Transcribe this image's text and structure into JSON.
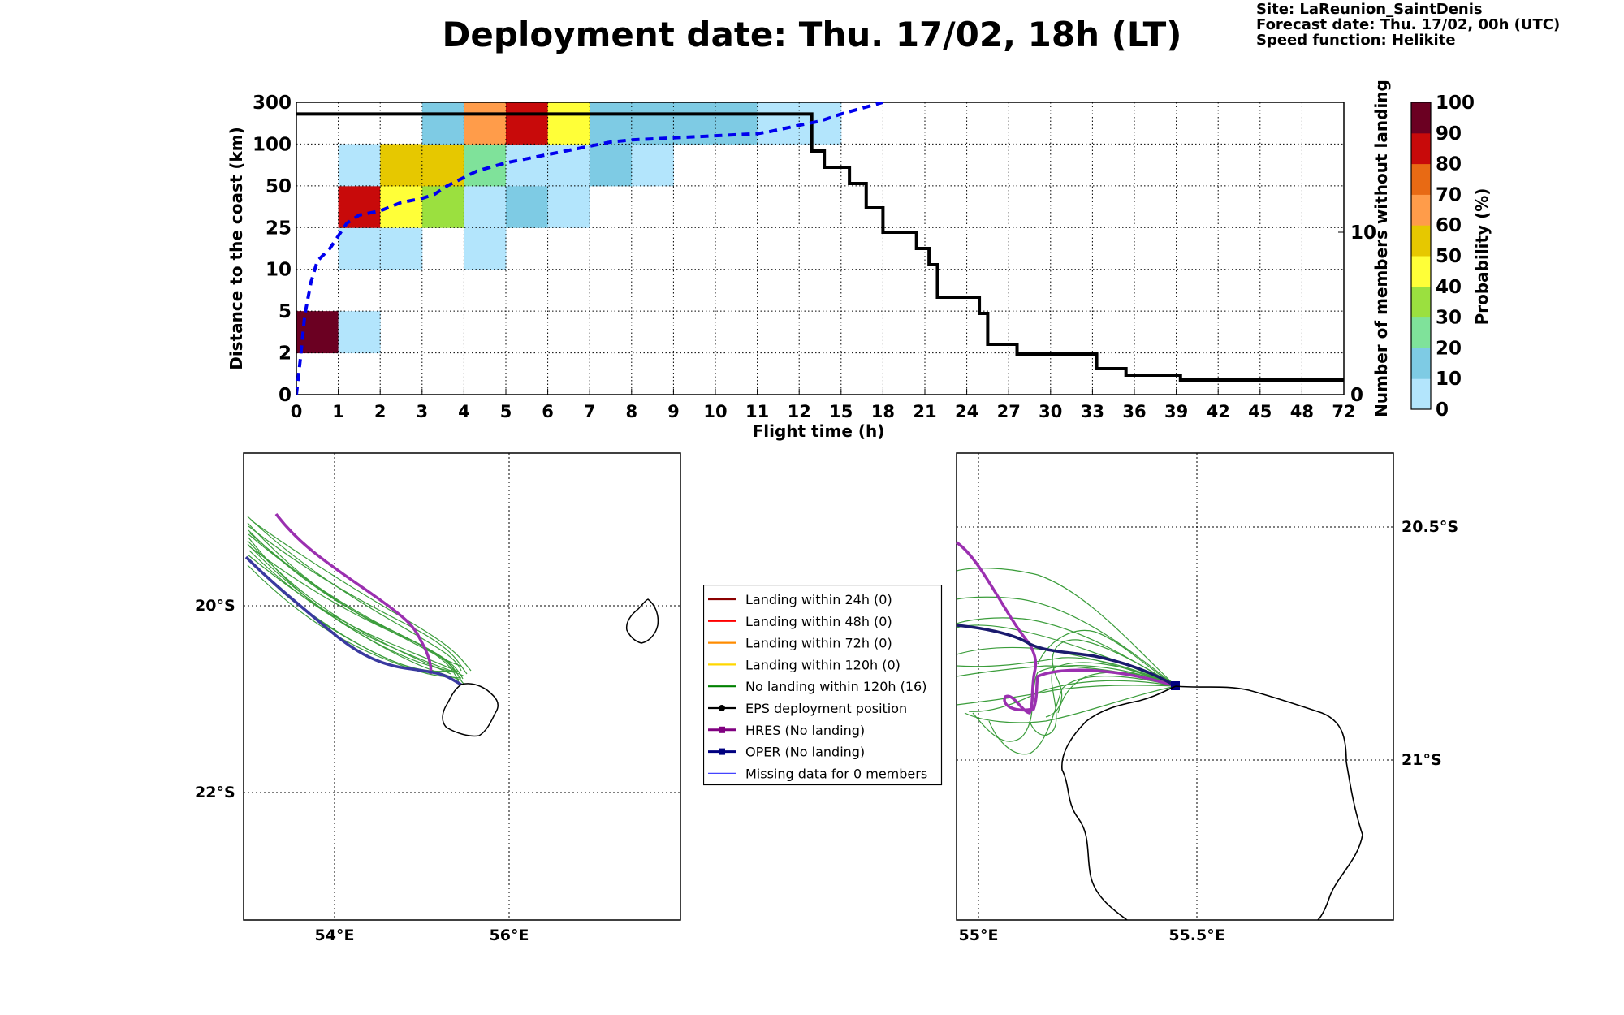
{
  "title": "Deployment date: Thu. 17/02, 18h (LT)",
  "meta": {
    "site": "Site: LaReunion_SaintDenis",
    "forecast": "Forecast date: Thu. 17/02, 00h (UTC)",
    "speed": "Speed function: Helikite"
  },
  "chart_data": [
    {
      "type": "heatmap",
      "xlabel": "Flight time (h)",
      "ylabel": "Distance to the coast (km)",
      "y2label": "Number of members without landing",
      "x_ticks": [
        "0",
        "1",
        "2",
        "3",
        "4",
        "5",
        "6",
        "7",
        "8",
        "9",
        "10",
        "11",
        "12",
        "15",
        "18",
        "21",
        "24",
        "27",
        "30",
        "33",
        "36",
        "39",
        "42",
        "45",
        "48",
        "72"
      ],
      "y_ticks": [
        "0",
        "2",
        "5",
        "10",
        "25",
        "50",
        "100",
        "300"
      ],
      "y2_ticks": [
        "0",
        "10"
      ],
      "y2lim": [
        0,
        18
      ],
      "grid": true,
      "colorbar": {
        "label": "Probability (%)",
        "ticks": [
          "0",
          "10",
          "20",
          "30",
          "40",
          "50",
          "60",
          "70",
          "80",
          "90",
          "100"
        ],
        "colors": [
          "#b3e5fc",
          "#7ecbe4",
          "#7fe29a",
          "#9be03f",
          "#ffff38",
          "#e6c800",
          "#ff9c4a",
          "#e86a14",
          "#c80a0a",
          "#6b0022"
        ]
      },
      "cells": [
        {
          "x": 0,
          "y": 1,
          "p": 95
        },
        {
          "x": 1,
          "y": 1,
          "p": 5
        },
        {
          "x": 1,
          "y": 3,
          "p": 5
        },
        {
          "x": 1,
          "y": 4,
          "p": 85
        },
        {
          "x": 1,
          "y": 5,
          "p": 5
        },
        {
          "x": 2,
          "y": 3,
          "p": 5
        },
        {
          "x": 2,
          "y": 4,
          "p": 45
        },
        {
          "x": 2,
          "y": 5,
          "p": 55
        },
        {
          "x": 3,
          "y": 4,
          "p": 35
        },
        {
          "x": 3,
          "y": 5,
          "p": 55
        },
        {
          "x": 3,
          "y": 6,
          "p": 15
        },
        {
          "x": 4,
          "y": 3,
          "p": 5
        },
        {
          "x": 4,
          "y": 4,
          "p": 5
        },
        {
          "x": 4,
          "y": 5,
          "p": 25
        },
        {
          "x": 4,
          "y": 6,
          "p": 65
        },
        {
          "x": 5,
          "y": 4,
          "p": 15
        },
        {
          "x": 5,
          "y": 5,
          "p": 5
        },
        {
          "x": 5,
          "y": 6,
          "p": 85
        },
        {
          "x": 6,
          "y": 4,
          "p": 5
        },
        {
          "x": 6,
          "y": 5,
          "p": 5
        },
        {
          "x": 6,
          "y": 6,
          "p": 45
        },
        {
          "x": 6,
          "y": 7,
          "p": 45
        },
        {
          "x": 7,
          "y": 5,
          "p": 15
        },
        {
          "x": 7,
          "y": 6,
          "p": 15
        },
        {
          "x": 7,
          "y": 7,
          "p": 65
        },
        {
          "x": 8,
          "y": 5,
          "p": 5
        },
        {
          "x": 8,
          "y": 6,
          "p": 15
        },
        {
          "x": 8,
          "y": 7,
          "p": 85
        },
        {
          "x": 9,
          "y": 6,
          "p": 15
        },
        {
          "x": 9,
          "y": 7,
          "p": 85
        },
        {
          "x": 10,
          "y": 6,
          "p": 15
        },
        {
          "x": 10,
          "y": 7,
          "p": 85
        },
        {
          "x": 11,
          "y": 6,
          "p": 5
        },
        {
          "x": 11,
          "y": 7,
          "p": 95
        },
        {
          "x": 12,
          "y": 6,
          "p": 5
        },
        {
          "x": 12,
          "y": 7,
          "p": 95
        },
        {
          "x": 13,
          "y": 7,
          "p": 95
        },
        {
          "x": 14,
          "y": 7,
          "p": 95
        },
        {
          "x": 15,
          "y": 7,
          "p": 65
        }
      ],
      "members_without_landing": {
        "step_x": [
          0,
          12.3,
          12.6,
          13.2,
          13.6,
          14.0,
          14.8,
          15.1,
          15.3,
          16.3,
          16.5,
          17.2,
          19.1,
          19.8,
          21.1,
          21.4
        ],
        "step_y": [
          16.0,
          15.0,
          14.0,
          13.0,
          11.5,
          10.0,
          9.0,
          8.0,
          6.0,
          5.0,
          3.1,
          2.5,
          1.6,
          1.2,
          0.9,
          0.9
        ],
        "x_end": 25
      },
      "median_distance": {
        "x": [
          0,
          0.1,
          0.2,
          0.35,
          0.5,
          0.8,
          1.0,
          1.2,
          1.5,
          2.0,
          2.5,
          3.0,
          3.3,
          3.6,
          4.0,
          4.3,
          5.0,
          5.5,
          6.0,
          6.5,
          7.0,
          7.5,
          8.0,
          9.0,
          10.0,
          11.0,
          11.3,
          12.0,
          12.5,
          13.0,
          14.0
        ],
        "y": [
          0,
          0.9,
          1.9,
          2.7,
          3.2,
          3.5,
          3.8,
          4.1,
          4.3,
          4.4,
          4.6,
          4.7,
          4.8,
          5.0,
          5.2,
          5.35,
          5.55,
          5.65,
          5.75,
          5.85,
          5.95,
          6.05,
          6.1,
          6.15,
          6.2,
          6.25,
          6.3,
          6.45,
          6.55,
          6.72,
          7.0
        ]
      },
      "reference_level_y": 6.72
    }
  ],
  "map_left": {
    "lat_labels": [
      "20°S",
      "22°S"
    ],
    "lon_labels": [
      "54°E",
      "56°E"
    ]
  },
  "map_right": {
    "lat_labels": [
      "20.5°S",
      "21°S"
    ],
    "lon_labels": [
      "55°E",
      "55.5°E"
    ]
  },
  "legend": [
    {
      "label": "Landing within 24h (0)",
      "color": "#8b0000",
      "style": "line"
    },
    {
      "label": "Landing within 48h (0)",
      "color": "#ff0000",
      "style": "line"
    },
    {
      "label": "Landing within 72h (0)",
      "color": "#ff8c00",
      "style": "line"
    },
    {
      "label": "Landing within 120h (0)",
      "color": "#ffd700",
      "style": "line"
    },
    {
      "label": "No landing within 120h (16)",
      "color": "#008000",
      "style": "line"
    },
    {
      "label": "EPS deployment position",
      "color": "#000000",
      "style": "dot"
    },
    {
      "label": "HRES (No landing)",
      "color": "#800080",
      "style": "square"
    },
    {
      "label": "OPER (No landing)",
      "color": "#000080",
      "style": "square"
    },
    {
      "label": "Missing data for 0 members",
      "color": "#4444ff",
      "style": "thin"
    }
  ]
}
